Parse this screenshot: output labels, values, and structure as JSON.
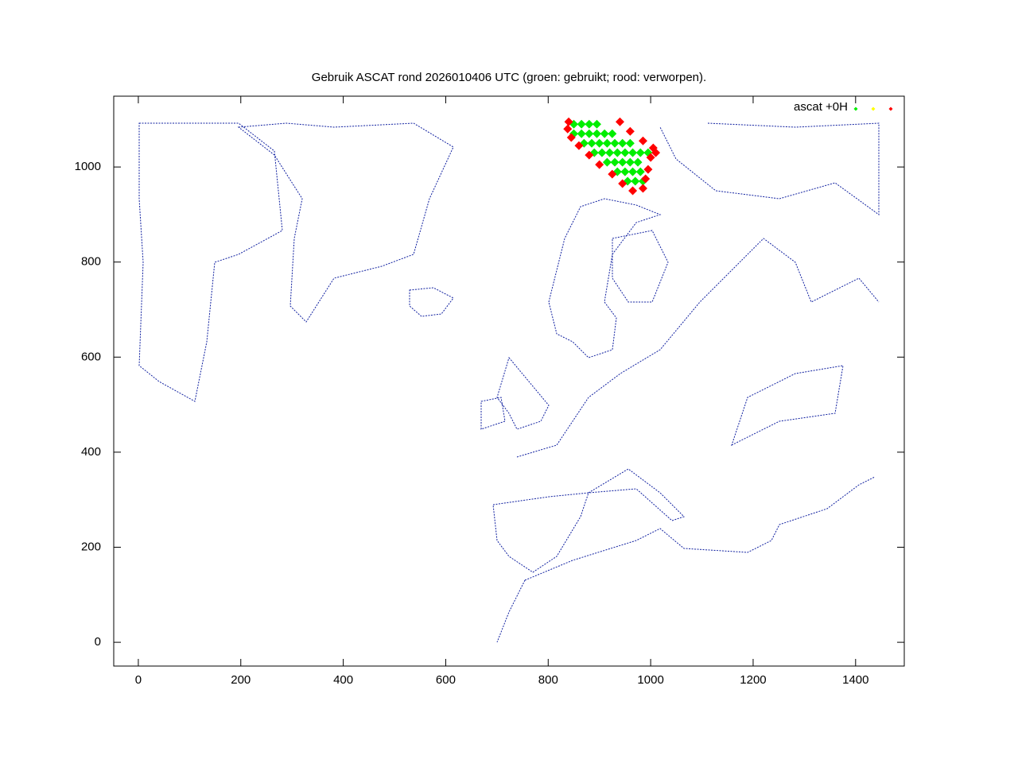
{
  "chart_data": {
    "type": "scatter",
    "title": "Gebruik ASCAT rond 2026010406 UTC (groen: gebruikt; rood: verworpen).",
    "legend_label": "ascat +0H",
    "xlim": [
      -48,
      1495
    ],
    "ylim": [
      -50,
      1149
    ],
    "xticks": [
      0,
      200,
      400,
      600,
      800,
      1000,
      1200,
      1400
    ],
    "yticks": [
      0,
      200,
      400,
      600,
      800,
      1000
    ],
    "series": [
      {
        "color": "#00ee00",
        "x": [
          850,
          865,
          880,
          895,
          850,
          865,
          880,
          895,
          910,
          925,
          870,
          885,
          900,
          915,
          930,
          945,
          960,
          890,
          905,
          920,
          935,
          950,
          965,
          980,
          995,
          915,
          930,
          945,
          960,
          975,
          935,
          950,
          965,
          980,
          955,
          970,
          985
        ],
        "values": [
          1090,
          1090,
          1090,
          1090,
          1070,
          1070,
          1070,
          1070,
          1070,
          1070,
          1050,
          1050,
          1050,
          1050,
          1050,
          1050,
          1050,
          1030,
          1030,
          1030,
          1030,
          1030,
          1030,
          1030,
          1030,
          1010,
          1010,
          1010,
          1010,
          1010,
          990,
          990,
          990,
          990,
          970,
          970,
          970
        ]
      },
      {
        "color": "#ffff00",
        "x": [],
        "values": []
      },
      {
        "color": "#ff0000",
        "x": [
          840,
          838,
          845,
          860,
          880,
          900,
          925,
          945,
          965,
          985,
          990,
          995,
          1000,
          1005,
          1010,
          940,
          960,
          985
        ],
        "values": [
          1095,
          1080,
          1062,
          1045,
          1025,
          1005,
          985,
          965,
          950,
          955,
          975,
          995,
          1020,
          1040,
          1030,
          1095,
          1075,
          1055
        ]
      }
    ]
  }
}
